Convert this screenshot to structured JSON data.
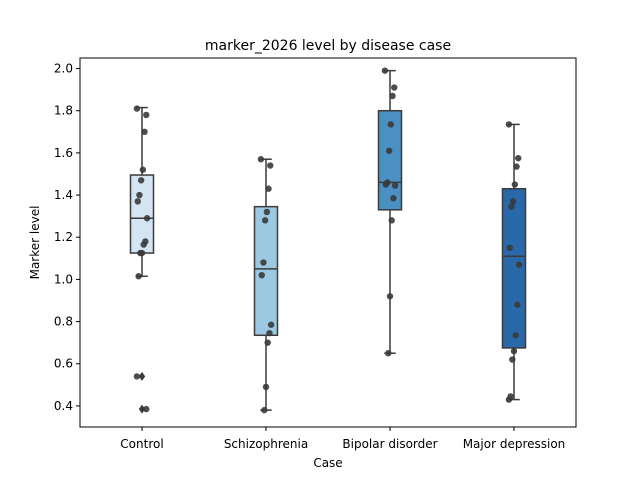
{
  "chart_data": {
    "type": "box",
    "title": "marker_2026 level by disease case",
    "xlabel": "Case",
    "ylabel": "Marker level",
    "ylim": [
      0.3,
      2.05
    ],
    "yticks": [
      "0.4",
      "0.6",
      "0.8",
      "1.0",
      "1.2",
      "1.4",
      "1.6",
      "1.8",
      "2.0"
    ],
    "grid": false,
    "categories": [
      "Control",
      "Schizophrenia",
      "Bipolar disorder",
      "Major depression"
    ],
    "colors": [
      "#d3e4f3",
      "#9cc9e1",
      "#4a90c2",
      "#2a69a9"
    ],
    "boxes": [
      {
        "q1": 1.125,
        "median": 1.29,
        "q3": 1.495,
        "whisker_low": 1.015,
        "whisker_high": 1.815,
        "fliers": [
          0.54,
          0.385
        ]
      },
      {
        "q1": 0.735,
        "median": 1.05,
        "q3": 1.345,
        "whisker_low": 0.38,
        "whisker_high": 1.57,
        "fliers": []
      },
      {
        "q1": 1.33,
        "median": 1.46,
        "q3": 1.8,
        "whisker_low": 0.65,
        "whisker_high": 1.99,
        "fliers": []
      },
      {
        "q1": 0.675,
        "median": 1.11,
        "q3": 1.43,
        "whisker_low": 0.43,
        "whisker_high": 1.735,
        "fliers": []
      }
    ],
    "points": [
      [
        1.81,
        1.78,
        1.7,
        1.52,
        1.47,
        1.4,
        1.37,
        1.29,
        1.18,
        1.165,
        1.125,
        1.125,
        1.015,
        0.54,
        0.385
      ],
      [
        1.57,
        1.54,
        1.43,
        1.32,
        1.28,
        1.08,
        1.02,
        0.785,
        0.745,
        0.7,
        0.49,
        0.38
      ],
      [
        1.99,
        1.91,
        1.87,
        1.735,
        1.61,
        1.46,
        1.45,
        1.445,
        1.385,
        1.28,
        0.92,
        0.65
      ],
      [
        1.735,
        1.575,
        1.535,
        1.45,
        1.37,
        1.345,
        1.15,
        1.07,
        0.88,
        0.735,
        0.66,
        0.62,
        0.445,
        0.43
      ]
    ]
  }
}
